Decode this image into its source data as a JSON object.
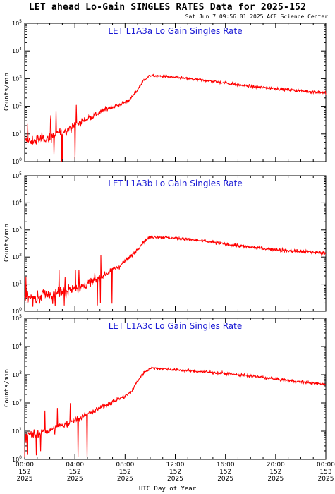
{
  "header": {
    "title": "LET ahead Lo-Gain SINGLES RATES Data for 2025-152",
    "timestamp": "Sat Jun  7 09:56:01 2025 ACE Science Center"
  },
  "colors": {
    "series": "#ff0000",
    "panel_title": "#1a1ad4",
    "axes": "#000000"
  },
  "x_axis": {
    "label": "UTC Day of Year",
    "ticks": [
      [
        "00:00",
        "152",
        "2025"
      ],
      [
        "04:00",
        "152",
        "2025"
      ],
      [
        "08:00",
        "152",
        "2025"
      ],
      [
        "12:00",
        "152",
        "2025"
      ],
      [
        "16:00",
        "152",
        "2025"
      ],
      [
        "20:00",
        "152",
        "2025"
      ],
      [
        "00:00",
        "153",
        "2025"
      ]
    ]
  },
  "chart_data": [
    {
      "type": "line",
      "title": "LET L1A3a Lo Gain Singles Rate",
      "ylabel": "Counts/min",
      "yscale": "log",
      "ylim": [
        1,
        100000
      ],
      "xlim_hours": [
        0,
        24
      ],
      "x_hours": [
        0,
        0.5,
        1,
        1.5,
        2,
        2.5,
        3,
        3.5,
        4,
        4.5,
        5,
        5.5,
        6,
        6.5,
        7,
        7.5,
        8,
        8.5,
        9,
        9.5,
        10,
        10.5,
        11,
        11.5,
        12,
        13,
        14,
        15,
        16,
        17,
        18,
        19,
        20,
        21,
        22,
        23,
        24
      ],
      "values": [
        6,
        5,
        6,
        7,
        7,
        10,
        12,
        15,
        20,
        27,
        35,
        45,
        60,
        80,
        95,
        110,
        140,
        200,
        400,
        900,
        1300,
        1250,
        1200,
        1150,
        1100,
        1000,
        900,
        800,
        700,
        600,
        520,
        480,
        440,
        400,
        360,
        330,
        310
      ],
      "grid": false,
      "legend": "none"
    },
    {
      "type": "line",
      "title": "LET L1A3b Lo Gain Singles Rate",
      "ylabel": "Counts/min",
      "yscale": "log",
      "ylim": [
        1,
        100000
      ],
      "xlim_hours": [
        0,
        24
      ],
      "x_hours": [
        0,
        0.5,
        1,
        1.5,
        2,
        2.5,
        3,
        3.5,
        4,
        4.5,
        5,
        5.5,
        6,
        6.5,
        7,
        7.5,
        8,
        8.5,
        9,
        9.5,
        10,
        10.5,
        11,
        11.5,
        12,
        13,
        14,
        15,
        16,
        17,
        18,
        19,
        20,
        21,
        22,
        23,
        24
      ],
      "values": [
        3,
        3,
        3,
        4,
        4,
        5,
        5,
        6,
        7,
        8,
        10,
        13,
        18,
        25,
        35,
        45,
        70,
        110,
        200,
        380,
        550,
        560,
        540,
        520,
        500,
        450,
        400,
        350,
        300,
        260,
        230,
        210,
        190,
        170,
        160,
        150,
        140
      ],
      "grid": false,
      "legend": "none"
    },
    {
      "type": "line",
      "title": "LET L1A3c Lo Gain Singles Rate",
      "ylabel": "Counts/min",
      "yscale": "log",
      "ylim": [
        1,
        100000
      ],
      "xlim_hours": [
        0,
        24
      ],
      "x_hours": [
        0,
        0.5,
        1,
        1.5,
        2,
        2.5,
        3,
        3.5,
        4,
        4.5,
        5,
        5.5,
        6,
        6.5,
        7,
        7.5,
        8,
        8.5,
        9,
        9.5,
        10,
        10.5,
        11,
        11.5,
        12,
        13,
        14,
        15,
        16,
        17,
        18,
        19,
        20,
        21,
        22,
        23,
        24
      ],
      "values": [
        7,
        7,
        8,
        9,
        11,
        13,
        16,
        20,
        25,
        30,
        40,
        50,
        65,
        85,
        110,
        140,
        170,
        250,
        600,
        1200,
        1700,
        1700,
        1650,
        1550,
        1500,
        1400,
        1300,
        1200,
        1100,
        1000,
        900,
        800,
        700,
        620,
        560,
        500,
        460
      ],
      "grid": false,
      "legend": "none"
    }
  ]
}
